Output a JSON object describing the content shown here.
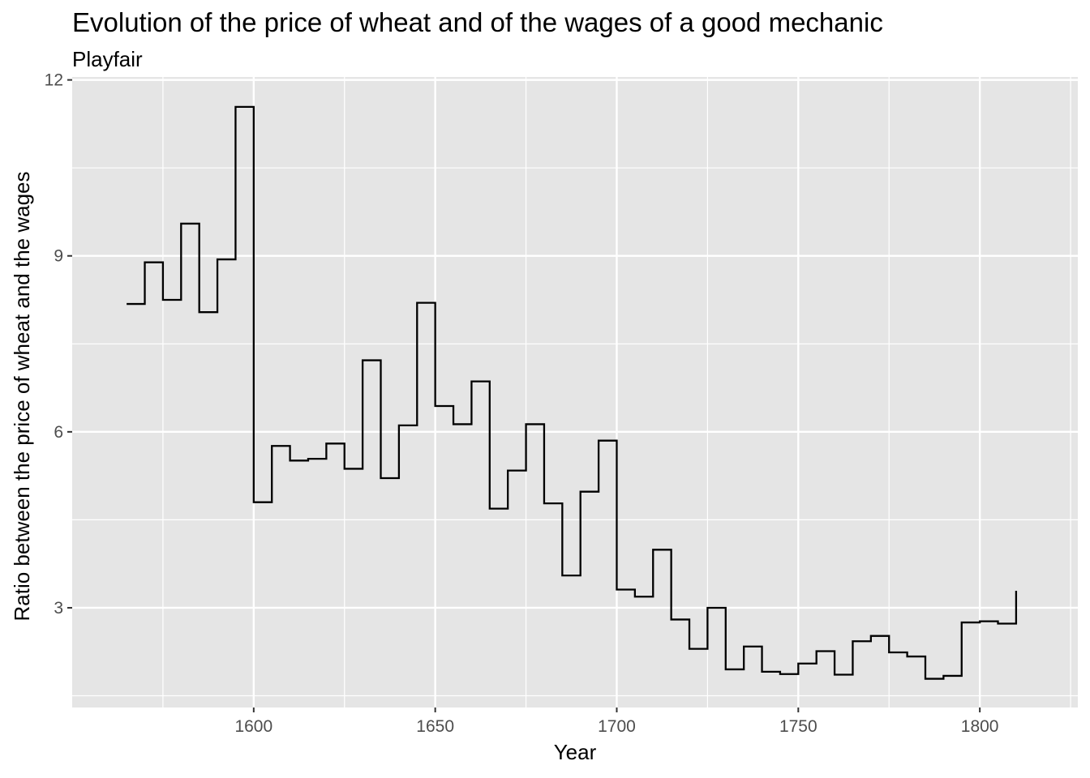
{
  "chart_data": {
    "type": "line",
    "style": "step",
    "title": "Evolution of the price of wheat and of the wages of a good mechanic",
    "subtitle": "Playfair",
    "xlabel": "Year",
    "ylabel": "Ratio between the price of wheat and the wages",
    "xlim": [
      1550,
      1827
    ],
    "ylim": [
      1.3,
      12.05
    ],
    "x_ticks": [
      1600,
      1650,
      1700,
      1750,
      1800
    ],
    "x_tick_labels": [
      "1600",
      "1650",
      "1700",
      "1750",
      "1800"
    ],
    "x_minor_ticks": [
      1575,
      1625,
      1675,
      1725,
      1775,
      1825
    ],
    "y_ticks": [
      3,
      6,
      9,
      12
    ],
    "y_tick_labels": [
      "3",
      "6",
      "9",
      "12"
    ],
    "y_minor_ticks": [
      1.5,
      4.5,
      7.5,
      10.5
    ],
    "grid": true,
    "legend": "none",
    "colors": {
      "panel_background": "#e5e5e5",
      "grid": "#ffffff",
      "line": "#000000",
      "tick_label": "#4d4d4d",
      "tick_mark": "#333333"
    },
    "series": [
      {
        "x": [
          1565,
          1570,
          1575,
          1580,
          1585,
          1590,
          1595,
          1600,
          1605,
          1610,
          1615,
          1620,
          1625,
          1630,
          1635,
          1640,
          1645,
          1650,
          1655,
          1660,
          1665,
          1670,
          1675,
          1680,
          1685,
          1690,
          1695,
          1700,
          1705,
          1710,
          1715,
          1720,
          1725,
          1730,
          1735,
          1740,
          1745,
          1750,
          1755,
          1760,
          1765,
          1770,
          1775,
          1780,
          1785,
          1790,
          1795,
          1800,
          1805,
          1810
        ],
        "y": [
          8.18,
          8.89,
          8.25,
          9.55,
          8.04,
          8.94,
          11.54,
          4.8,
          5.76,
          5.51,
          5.54,
          5.8,
          5.37,
          7.22,
          5.21,
          6.11,
          8.2,
          6.44,
          6.13,
          6.86,
          4.69,
          5.34,
          6.13,
          4.78,
          3.55,
          4.98,
          5.85,
          3.31,
          3.19,
          3.99,
          2.8,
          2.3,
          3.0,
          1.95,
          2.34,
          1.91,
          1.87,
          2.05,
          2.26,
          1.86,
          2.43,
          2.52,
          2.24,
          2.17,
          1.79,
          1.84,
          2.75,
          2.77,
          2.73,
          3.29
        ]
      }
    ]
  }
}
